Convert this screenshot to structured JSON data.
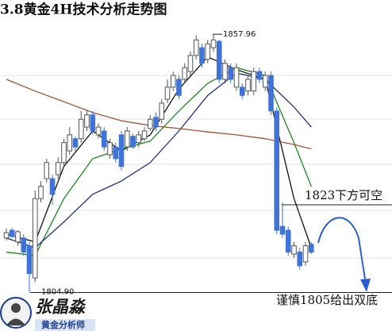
{
  "chart_data": {
    "type": "candlestick",
    "title": "3.8黄金4H技术分析走势图",
    "ylim": [
      1797,
      1865
    ],
    "up_color": "#ffffff",
    "up_edge": "#555555",
    "down_color": "#3f73d8",
    "open": [
      1816.1,
      1817.7,
      1815.3,
      1816.1,
      1814.5,
      1807.9,
      1824.2,
      1828.3,
      1828.3,
      1829.1,
      1831.6,
      1834.0,
      1836.5,
      1836.5,
      1838.9,
      1841.4,
      1837.3,
      1838.1,
      1833.2,
      1834.8,
      1837.3,
      1834.8,
      1837.0,
      1835.7,
      1836.5,
      1838.6,
      1840.9,
      1840.5,
      1844.6,
      1847.1,
      1848.7,
      1848.7,
      1850.3,
      1853.6,
      1855.2,
      1852.8,
      1855.2,
      1856.5,
      1848.7,
      1851.1,
      1847.1,
      1847.1,
      1846.3,
      1846.3,
      1850.3,
      1847.1,
      1849.5,
      1842.2,
      1818.5,
      1817.7,
      1812.8,
      1813.2,
      1811.2,
      1814.8
    ],
    "high": [
      1818.1,
      1818.2,
      1817.7,
      1816.9,
      1815.3,
      1825.9,
      1827.8,
      1832.4,
      1829.1,
      1832.7,
      1836.5,
      1838.9,
      1837.0,
      1842.2,
      1842.2,
      1842.2,
      1839.7,
      1838.9,
      1836.5,
      1835.7,
      1838.1,
      1838.9,
      1837.6,
      1838.1,
      1838.9,
      1841.4,
      1841.9,
      1844.6,
      1848.7,
      1850.3,
      1849.5,
      1852.0,
      1854.4,
      1857.7,
      1856.0,
      1856.8,
      1857.96,
      1856.8,
      1852.8,
      1852.0,
      1852.0,
      1847.9,
      1849.5,
      1851.1,
      1851.1,
      1850.3,
      1850.3,
      1843.0,
      1823.4,
      1818.5,
      1815.3,
      1814.1,
      1815.3,
      1815.3
    ],
    "low": [
      1815.6,
      1816.1,
      1814.5,
      1812.5,
      1804.9,
      1807.1,
      1823.4,
      1827.5,
      1822.9,
      1828.3,
      1830.8,
      1833.2,
      1834.0,
      1835.7,
      1838.1,
      1837.3,
      1836.5,
      1834.0,
      1832.4,
      1831.6,
      1830.0,
      1834.0,
      1834.4,
      1834.8,
      1836.0,
      1838.1,
      1838.1,
      1839.7,
      1843.8,
      1846.3,
      1844.6,
      1847.9,
      1849.5,
      1852.8,
      1851.1,
      1852.0,
      1854.4,
      1847.9,
      1847.9,
      1847.9,
      1846.3,
      1844.6,
      1845.4,
      1845.4,
      1847.9,
      1846.3,
      1841.4,
      1816.9,
      1816.1,
      1812.5,
      1812.0,
      1809.6,
      1810.4,
      1812.8
    ],
    "close": [
      1817.2,
      1816.4,
      1817.4,
      1813.2,
      1808.8,
      1824.2,
      1826.7,
      1831.6,
      1825.1,
      1831.6,
      1835.7,
      1837.3,
      1834.8,
      1840.5,
      1841.4,
      1838.1,
      1838.9,
      1834.8,
      1835.7,
      1832.4,
      1830.8,
      1838.1,
      1834.8,
      1837.3,
      1838.1,
      1840.5,
      1838.9,
      1843.8,
      1847.1,
      1849.5,
      1845.4,
      1851.1,
      1853.6,
      1856.8,
      1852.0,
      1856.0,
      1856.8,
      1848.7,
      1852.0,
      1848.7,
      1851.1,
      1845.4,
      1848.7,
      1850.3,
      1848.7,
      1849.5,
      1842.2,
      1817.7,
      1816.9,
      1813.2,
      1814.5,
      1810.4,
      1814.5,
      1813.2
    ],
    "lines": [
      {
        "color": "#111111",
        "x": [
          0,
          5,
          10,
          15,
          20,
          25,
          30,
          35,
          40,
          45,
          50,
          53
        ],
        "values": [
          1816.9,
          1815.3,
          1830.8,
          1838.1,
          1834.0,
          1837.3,
          1846.7,
          1853.3,
          1850.7,
          1848.7,
          1824.2,
          1814.1
        ]
      },
      {
        "color": "#1a8a1a",
        "x": [
          0,
          5,
          10,
          15,
          20,
          25,
          30,
          35,
          40,
          45,
          50,
          53
        ],
        "values": [
          1813.2,
          1812.5,
          1824.2,
          1832.4,
          1834.4,
          1836.0,
          1842.2,
          1847.9,
          1851.1,
          1849.5,
          1835.7,
          1826.7
        ]
      },
      {
        "color": "#1f2f8f",
        "x": [
          0,
          5,
          10,
          15,
          20,
          25,
          30,
          35,
          40,
          45,
          50,
          53
        ],
        "values": [
          1816.1,
          1814.1,
          1819.4,
          1825.1,
          1827.8,
          1831.6,
          1838.1,
          1845.4,
          1850.0,
          1848.7,
          1843.0,
          1838.9
        ]
      },
      {
        "color": "#a0522d",
        "x": [
          0,
          5,
          10,
          15,
          20,
          25,
          30,
          35,
          40,
          45,
          50,
          53
        ],
        "values": [
          1848.7,
          1846.3,
          1844.1,
          1841.9,
          1840.2,
          1839.2,
          1838.6,
          1837.9,
          1837.3,
          1836.5,
          1835.3,
          1834.4
        ]
      }
    ],
    "high_mark": 1857.96,
    "low_mark": {
      "value": 1804.9,
      "label": "1804.90"
    },
    "note_resistance": "1823下方可空",
    "note_bottom": "谨慎1805给出双底"
  },
  "logo": {
    "name": "张晶淼",
    "role": "黄金分析师"
  }
}
